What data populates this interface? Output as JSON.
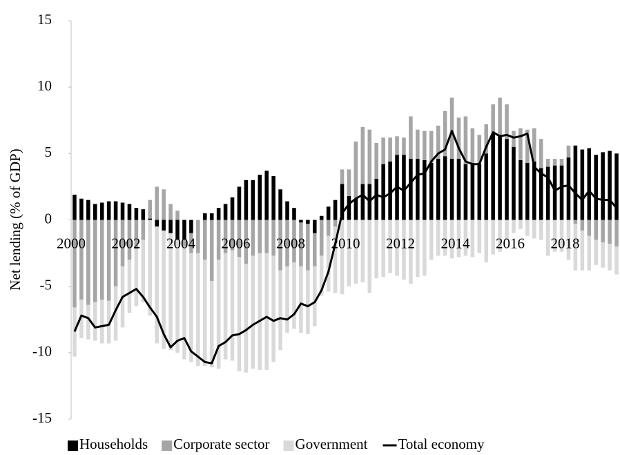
{
  "chart_data": {
    "type": "bar",
    "stacked": true,
    "y_label": "Net lending (% of GDP)",
    "ylim": [
      -15,
      15
    ],
    "yticks": [
      -15,
      -10,
      -5,
      0,
      5,
      10,
      15
    ],
    "categories": [
      "2000",
      null,
      null,
      null,
      null,
      null,
      null,
      null,
      "2002",
      null,
      null,
      null,
      null,
      null,
      null,
      null,
      "2004",
      null,
      null,
      null,
      null,
      null,
      null,
      null,
      "2006",
      null,
      null,
      null,
      null,
      null,
      null,
      null,
      "2008",
      null,
      null,
      null,
      null,
      null,
      null,
      null,
      "2010",
      null,
      null,
      null,
      null,
      null,
      null,
      null,
      "2012",
      null,
      null,
      null,
      null,
      null,
      null,
      null,
      "2014",
      null,
      null,
      null,
      null,
      null,
      null,
      null,
      "2016",
      null,
      null,
      null,
      null,
      null,
      null,
      null,
      "2018",
      null,
      null,
      null,
      null,
      null,
      null,
      null
    ],
    "series": [
      {
        "name": "Households",
        "type": "bar",
        "color": "#000000",
        "values": [
          1.9,
          1.6,
          1.5,
          1.2,
          1.3,
          1.4,
          1.4,
          1.3,
          1.2,
          0.9,
          0.8,
          0.1,
          -0.5,
          -0.8,
          -1.0,
          -1.5,
          -1.5,
          -1.0,
          0.0,
          0.5,
          0.5,
          0.9,
          1.2,
          1.7,
          2.5,
          3.0,
          3.0,
          3.4,
          3.7,
          3.3,
          2.3,
          1.4,
          0.9,
          -0.2,
          -0.3,
          -1.0,
          0.3,
          1.0,
          1.5,
          2.7,
          1.8,
          1.6,
          2.7,
          2.7,
          3.1,
          4.2,
          4.4,
          4.9,
          4.9,
          4.6,
          4.6,
          4.5,
          4.3,
          4.6,
          4.8,
          4.6,
          4.6,
          4.2,
          4.3,
          4.2,
          5.0,
          6.5,
          6.4,
          6.1,
          5.5,
          4.5,
          4.3,
          4.4,
          3.9,
          4.0,
          4.1,
          4.1,
          4.7,
          5.6,
          5.3,
          5.4,
          4.9,
          5.1,
          5.2,
          5.0
        ]
      },
      {
        "name": "Corporate sector",
        "type": "bar",
        "color": "#a6a6a6",
        "values": [
          -6.6,
          -6.0,
          -6.4,
          -6.2,
          -6.0,
          -6.1,
          -5.0,
          -3.5,
          -3.0,
          -2.2,
          -1.5,
          1.4,
          2.5,
          2.3,
          1.2,
          0.7,
          -0.5,
          -1.5,
          -2.5,
          -3.0,
          -4.6,
          -3.0,
          -2.5,
          -2.3,
          -2.8,
          -3.3,
          -2.7,
          -2.5,
          -2.5,
          -2.7,
          -3.8,
          -3.5,
          -3.2,
          -3.3,
          -3.5,
          -2.5,
          -2.7,
          -1.2,
          -0.5,
          1.1,
          2.0,
          4.3,
          4.3,
          4.1,
          2.7,
          2.0,
          1.8,
          1.4,
          1.3,
          3.2,
          2.2,
          2.2,
          2.4,
          2.5,
          3.4,
          4.6,
          3.1,
          3.6,
          2.6,
          2.2,
          2.2,
          2.2,
          2.8,
          2.6,
          1.2,
          2.4,
          2.5,
          2.5,
          2.2,
          0.6,
          0.5,
          0.5,
          0.9,
          -0.3,
          -0.8,
          -1.2,
          -1.5,
          -1.7,
          -1.8,
          -2.0
        ]
      },
      {
        "name": "Government",
        "type": "bar",
        "color": "#d9d9d9",
        "values": [
          -3.7,
          -2.9,
          -2.6,
          -2.9,
          -3.3,
          -3.2,
          -4.1,
          -4.6,
          -4.0,
          -4.3,
          -4.7,
          -7.2,
          -8.8,
          -8.9,
          -8.8,
          -8.5,
          -8.5,
          -8.2,
          -8.5,
          -8.0,
          -6.5,
          -8.2,
          -8.0,
          -8.3,
          -8.6,
          -8.2,
          -8.5,
          -8.8,
          -8.8,
          -8.0,
          -6.0,
          -5.0,
          -5.0,
          -5.0,
          -4.8,
          -4.5,
          -3.0,
          -4.2,
          -5.0,
          -5.6,
          -5.0,
          -4.8,
          -4.7,
          -5.5,
          -4.4,
          -4.3,
          -4.0,
          -4.2,
          -4.5,
          -4.8,
          -4.3,
          -4.2,
          -3.0,
          -2.7,
          -2.7,
          -2.9,
          -2.8,
          -2.7,
          -2.8,
          -2.5,
          -3.2,
          -2.6,
          -2.4,
          -1.5,
          -1.0,
          -0.7,
          -1.2,
          -1.4,
          -1.5,
          -2.7,
          -2.4,
          -2.4,
          -3.0,
          -3.5,
          -3.0,
          -2.6,
          -1.9,
          -1.9,
          -2.0,
          -2.1
        ]
      },
      {
        "name": "Total economy",
        "type": "line",
        "color": "#000000",
        "values": [
          -8.4,
          -7.2,
          -7.4,
          -8.1,
          -8.0,
          -7.9,
          -6.8,
          -5.8,
          -5.5,
          -5.2,
          -5.8,
          -6.6,
          -7.3,
          -8.6,
          -9.6,
          -9.1,
          -8.9,
          -9.9,
          -10.3,
          -10.7,
          -10.8,
          -9.5,
          -9.2,
          -8.7,
          -8.6,
          -8.3,
          -7.9,
          -7.6,
          -7.3,
          -7.6,
          -7.4,
          -7.5,
          -7.1,
          -6.3,
          -6.5,
          -6.2,
          -5.3,
          -3.9,
          -1.8,
          0.5,
          1.2,
          1.6,
          1.9,
          1.4,
          1.9,
          1.7,
          2.0,
          2.5,
          2.2,
          2.8,
          3.4,
          3.5,
          4.4,
          5.0,
          5.3,
          6.7,
          5.4,
          4.4,
          4.2,
          4.2,
          5.5,
          6.6,
          6.3,
          6.4,
          6.2,
          6.3,
          6.5,
          4.0,
          3.5,
          3.2,
          2.2,
          2.5,
          2.6,
          2.0,
          1.5,
          2.2,
          1.6,
          1.5,
          1.5,
          0.9
        ]
      }
    ]
  }
}
